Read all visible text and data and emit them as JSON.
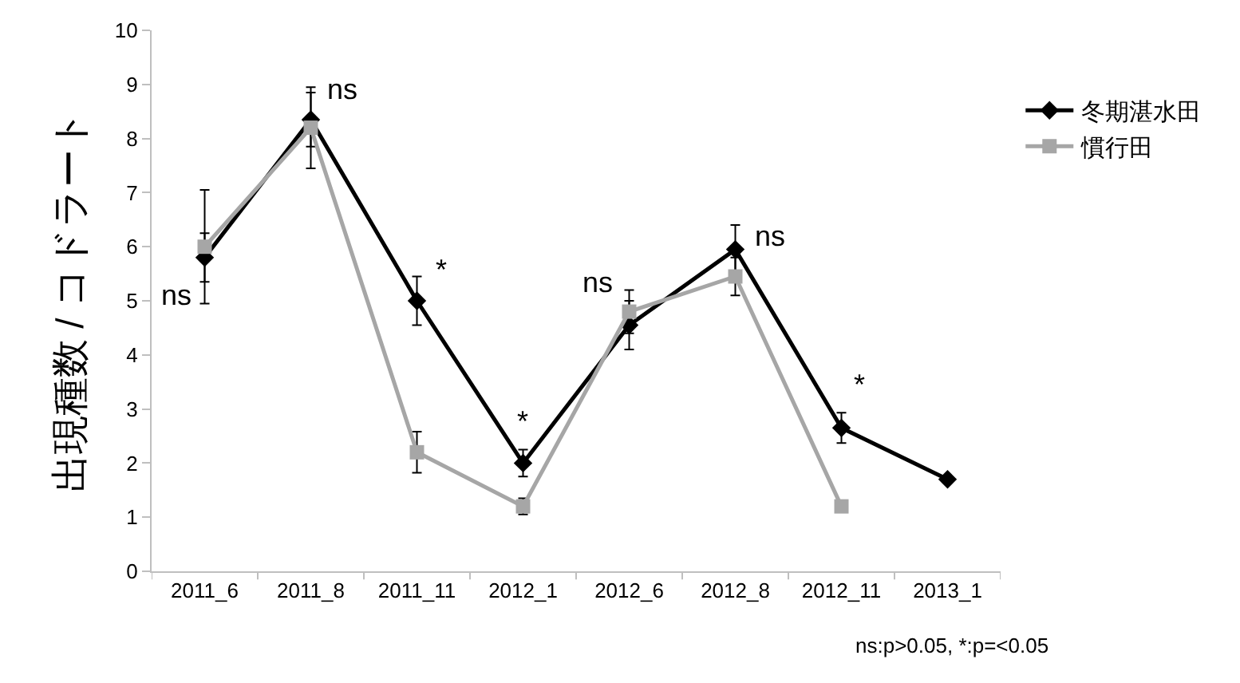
{
  "chart_data": {
    "type": "line",
    "ylabel": "出現種数 / コドラート",
    "categories": [
      "2011_6",
      "2011_8",
      "2011_11",
      "2012_1",
      "2012_6",
      "2012_8",
      "2012_11",
      "2013_1"
    ],
    "series": [
      {
        "name": "冬期湛水田",
        "color": "#000000",
        "marker": "diamond",
        "values": [
          5.8,
          8.35,
          5.0,
          2.0,
          4.55,
          5.95,
          2.65,
          1.7
        ],
        "errors": [
          0.45,
          0.5,
          0.45,
          0.25,
          0.45,
          0.45,
          0.28,
          null
        ]
      },
      {
        "name": "慣行田",
        "color": "#a6a6a6",
        "marker": "square",
        "values": [
          6.0,
          8.2,
          2.2,
          1.2,
          4.8,
          5.45,
          1.2,
          null
        ],
        "errors": [
          1.05,
          0.75,
          0.38,
          0.15,
          0.4,
          0.35,
          null,
          null
        ]
      }
    ],
    "ylim": [
      0,
      10
    ],
    "yticks": [
      0,
      1,
      2,
      3,
      4,
      5,
      6,
      7,
      8,
      9,
      10
    ],
    "grid": false,
    "legend": "top right",
    "line_style": "solid",
    "annotations": [
      {
        "text": "ns",
        "x": "2011_6",
        "y": 5.8
      },
      {
        "text": "ns",
        "x": "2011_8",
        "y": 8.35
      },
      {
        "text": "*",
        "x": "2011_11",
        "y": 5.0
      },
      {
        "text": "*",
        "x": "2012_1",
        "y": 2.0
      },
      {
        "text": "ns",
        "x": "2012_6",
        "y": 4.55
      },
      {
        "text": "ns",
        "x": "2012_8",
        "y": 5.95
      },
      {
        "text": "*",
        "x": "2012_11",
        "y": 2.65
      },
      "ns:p>0.05, *:p=<0.05"
    ]
  }
}
